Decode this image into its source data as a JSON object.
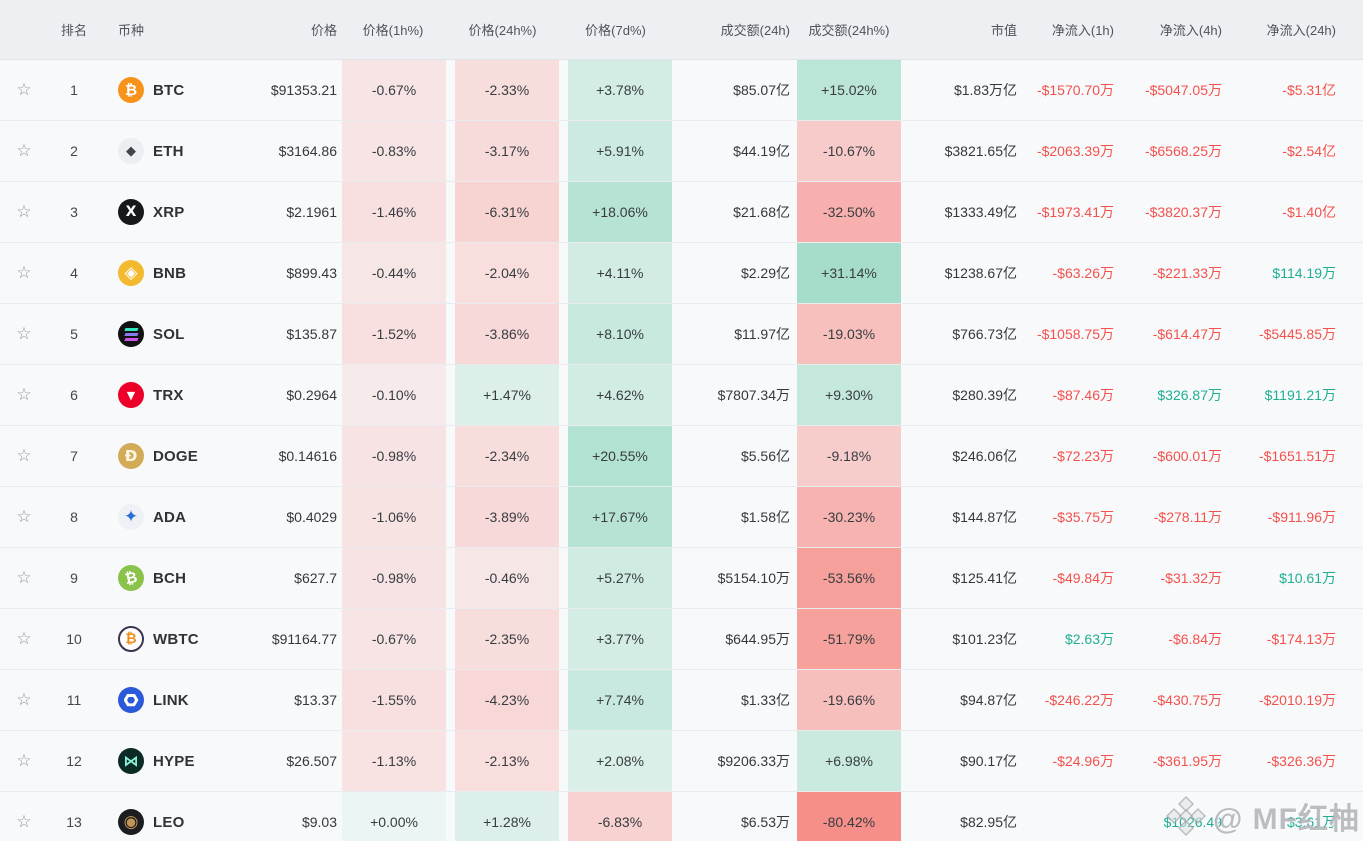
{
  "table": {
    "headers": [
      "排名",
      "币种",
      "价格",
      "价格(1h%)",
      "价格(24h%)",
      "价格(7d%)",
      "成交额(24h)",
      "成交额(24h%)",
      "市值",
      "净流入(1h)",
      "净流入(4h)",
      "净流入(24h)"
    ],
    "favorite_icon": "☆",
    "rows": [
      {
        "rank": "1",
        "symbol": "BTC",
        "icon": {
          "name": "btc-icon",
          "bg": "#f7931a",
          "fg": "#ffffff",
          "glyph": "₿",
          "size": 15
        },
        "price": "$91353.21",
        "p1h": "-0.67%",
        "p24h": "-2.33%",
        "p7d": "+3.78%",
        "vol": "$85.07亿",
        "volp": "+15.02%",
        "mcap": "$1.83万亿",
        "nf1h": "-$1570.70万",
        "nf4h": "-$5047.05万",
        "nf24h": "-$5.31亿"
      },
      {
        "rank": "2",
        "symbol": "ETH",
        "icon": {
          "name": "eth-icon",
          "bg": "#eceef2",
          "fg": "#3f434c",
          "glyph": "◆",
          "size": 13
        },
        "price": "$3164.86",
        "p1h": "-0.83%",
        "p24h": "-3.17%",
        "p7d": "+5.91%",
        "vol": "$44.19亿",
        "volp": "-10.67%",
        "mcap": "$3821.65亿",
        "nf1h": "-$2063.39万",
        "nf4h": "-$6568.25万",
        "nf24h": "-$2.54亿"
      },
      {
        "rank": "3",
        "symbol": "XRP",
        "icon": {
          "name": "xrp-icon",
          "bg": "#17181b",
          "fg": "#ffffff",
          "glyph": "X",
          "size": 14
        },
        "price": "$2.1961",
        "p1h": "-1.46%",
        "p24h": "-6.31%",
        "p7d": "+18.06%",
        "vol": "$21.68亿",
        "volp": "-32.50%",
        "mcap": "$1333.49亿",
        "nf1h": "-$1973.41万",
        "nf4h": "-$3820.37万",
        "nf24h": "-$1.40亿"
      },
      {
        "rank": "4",
        "symbol": "BNB",
        "icon": {
          "name": "bnb-icon",
          "bg": "#f3ba2f",
          "fg": "#ffffff",
          "glyph": "◈",
          "size": 17
        },
        "price": "$899.43",
        "p1h": "-0.44%",
        "p24h": "-2.04%",
        "p7d": "+4.11%",
        "vol": "$2.29亿",
        "volp": "+31.14%",
        "mcap": "$1238.67亿",
        "nf1h": "-$63.26万",
        "nf4h": "-$221.33万",
        "nf24h": "$114.19万"
      },
      {
        "rank": "5",
        "symbol": "SOL",
        "icon": {
          "name": "sol-icon",
          "bg": "#121212",
          "fg": "#2fe0b0",
          "shape": "sol-bars",
          "bars": [
            "#33e8c0",
            "#8a7bee",
            "#cf53e8"
          ]
        },
        "price": "$135.87",
        "p1h": "-1.52%",
        "p24h": "-3.86%",
        "p7d": "+8.10%",
        "vol": "$11.97亿",
        "volp": "-19.03%",
        "mcap": "$766.73亿",
        "nf1h": "-$1058.75万",
        "nf4h": "-$614.47万",
        "nf24h": "-$5445.85万"
      },
      {
        "rank": "6",
        "symbol": "TRX",
        "icon": {
          "name": "trx-icon",
          "bg": "#ec0029",
          "fg": "#ffffff",
          "glyph": "▼",
          "size": 11
        },
        "price": "$0.2964",
        "p1h": "-0.10%",
        "p24h": "+1.47%",
        "p7d": "+4.62%",
        "vol": "$7807.34万",
        "volp": "+9.30%",
        "mcap": "$280.39亿",
        "nf1h": "-$87.46万",
        "nf4h": "$326.87万",
        "nf24h": "$1191.21万"
      },
      {
        "rank": "7",
        "symbol": "DOGE",
        "icon": {
          "name": "doge-icon",
          "bg": "#d3ab57",
          "fg": "#fdf6e3",
          "glyph": "Ð",
          "size": 15
        },
        "price": "$0.14616",
        "p1h": "-0.98%",
        "p24h": "-2.34%",
        "p7d": "+20.55%",
        "vol": "$5.56亿",
        "volp": "-9.18%",
        "mcap": "$246.06亿",
        "nf1h": "-$72.23万",
        "nf4h": "-$600.01万",
        "nf24h": "-$1651.51万"
      },
      {
        "rank": "8",
        "symbol": "ADA",
        "icon": {
          "name": "ada-icon",
          "bg": "#eef1f6",
          "fg": "#2b6fd4",
          "glyph": "✦",
          "size": 17
        },
        "price": "$0.4029",
        "p1h": "-1.06%",
        "p24h": "-3.89%",
        "p7d": "+17.67%",
        "vol": "$1.58亿",
        "volp": "-30.23%",
        "mcap": "$144.87亿",
        "nf1h": "-$35.75万",
        "nf4h": "-$278.11万",
        "nf24h": "-$911.96万"
      },
      {
        "rank": "9",
        "symbol": "BCH",
        "icon": {
          "name": "bch-icon",
          "bg": "#8ac24a",
          "fg": "#ffffff",
          "glyph": "₿",
          "size": 15,
          "rotate": -12
        },
        "price": "$627.7",
        "p1h": "-0.98%",
        "p24h": "-0.46%",
        "p7d": "+5.27%",
        "vol": "$5154.10万",
        "volp": "-53.56%",
        "mcap": "$125.41亿",
        "nf1h": "-$49.84万",
        "nf4h": "-$31.32万",
        "nf24h": "$10.61万"
      },
      {
        "rank": "10",
        "symbol": "WBTC",
        "icon": {
          "name": "wbtc-icon",
          "bg": "#ffffff",
          "fg": "#ef8e19",
          "glyph": "₿",
          "size": 14,
          "ring": "#3a3450"
        },
        "price": "$91164.77",
        "p1h": "-0.67%",
        "p24h": "-2.35%",
        "p7d": "+3.77%",
        "vol": "$644.95万",
        "volp": "-51.79%",
        "mcap": "$101.23亿",
        "nf1h": "$2.63万",
        "nf4h": "-$6.84万",
        "nf24h": "-$174.13万"
      },
      {
        "rank": "11",
        "symbol": "LINK",
        "icon": {
          "name": "link-icon",
          "bg": "#2a5ada",
          "fg": "#ffffff",
          "shape": "hex-ring"
        },
        "price": "$13.37",
        "p1h": "-1.55%",
        "p24h": "-4.23%",
        "p7d": "+7.74%",
        "vol": "$1.33亿",
        "volp": "-19.66%",
        "mcap": "$94.87亿",
        "nf1h": "-$246.22万",
        "nf4h": "-$430.75万",
        "nf24h": "-$2010.19万"
      },
      {
        "rank": "12",
        "symbol": "HYPE",
        "icon": {
          "name": "hype-icon",
          "bg": "#0c2b26",
          "fg": "#8df5dc",
          "glyph": "⋈",
          "size": 15
        },
        "price": "$26.507",
        "p1h": "-1.13%",
        "p24h": "-2.13%",
        "p7d": "+2.08%",
        "vol": "$9206.33万",
        "volp": "+6.98%",
        "mcap": "$90.17亿",
        "nf1h": "-$24.96万",
        "nf4h": "-$361.95万",
        "nf24h": "-$326.36万"
      },
      {
        "rank": "13",
        "symbol": "LEO",
        "icon": {
          "name": "leo-icon",
          "bg": "#1b1d20",
          "fg": "#c29555",
          "glyph": "◉",
          "size": 17
        },
        "price": "$9.03",
        "p1h": "+0.00%",
        "p24h": "+1.28%",
        "p7d": "-6.83%",
        "vol": "$6.53万",
        "volp": "-80.42%",
        "mcap": "$82.95亿",
        "nf1h": "",
        "nf4h": "$1026.49",
        "nf24h": "$3.61万"
      }
    ]
  },
  "colors": {
    "header_bg": "#edeff2",
    "row_bg": "#f8f9fa",
    "border": "#e9ebee",
    "text": "#34383d",
    "header_text": "#4e545b",
    "positive_text": "#1fae93",
    "negative_text": "#f4514c",
    "positive_bg_base": "40,180,130",
    "negative_bg_base": "245,70,60",
    "star": "#8f959b"
  },
  "watermark": {
    "text": "@ MF红柚",
    "icon": "binance-diamond-icon"
  }
}
